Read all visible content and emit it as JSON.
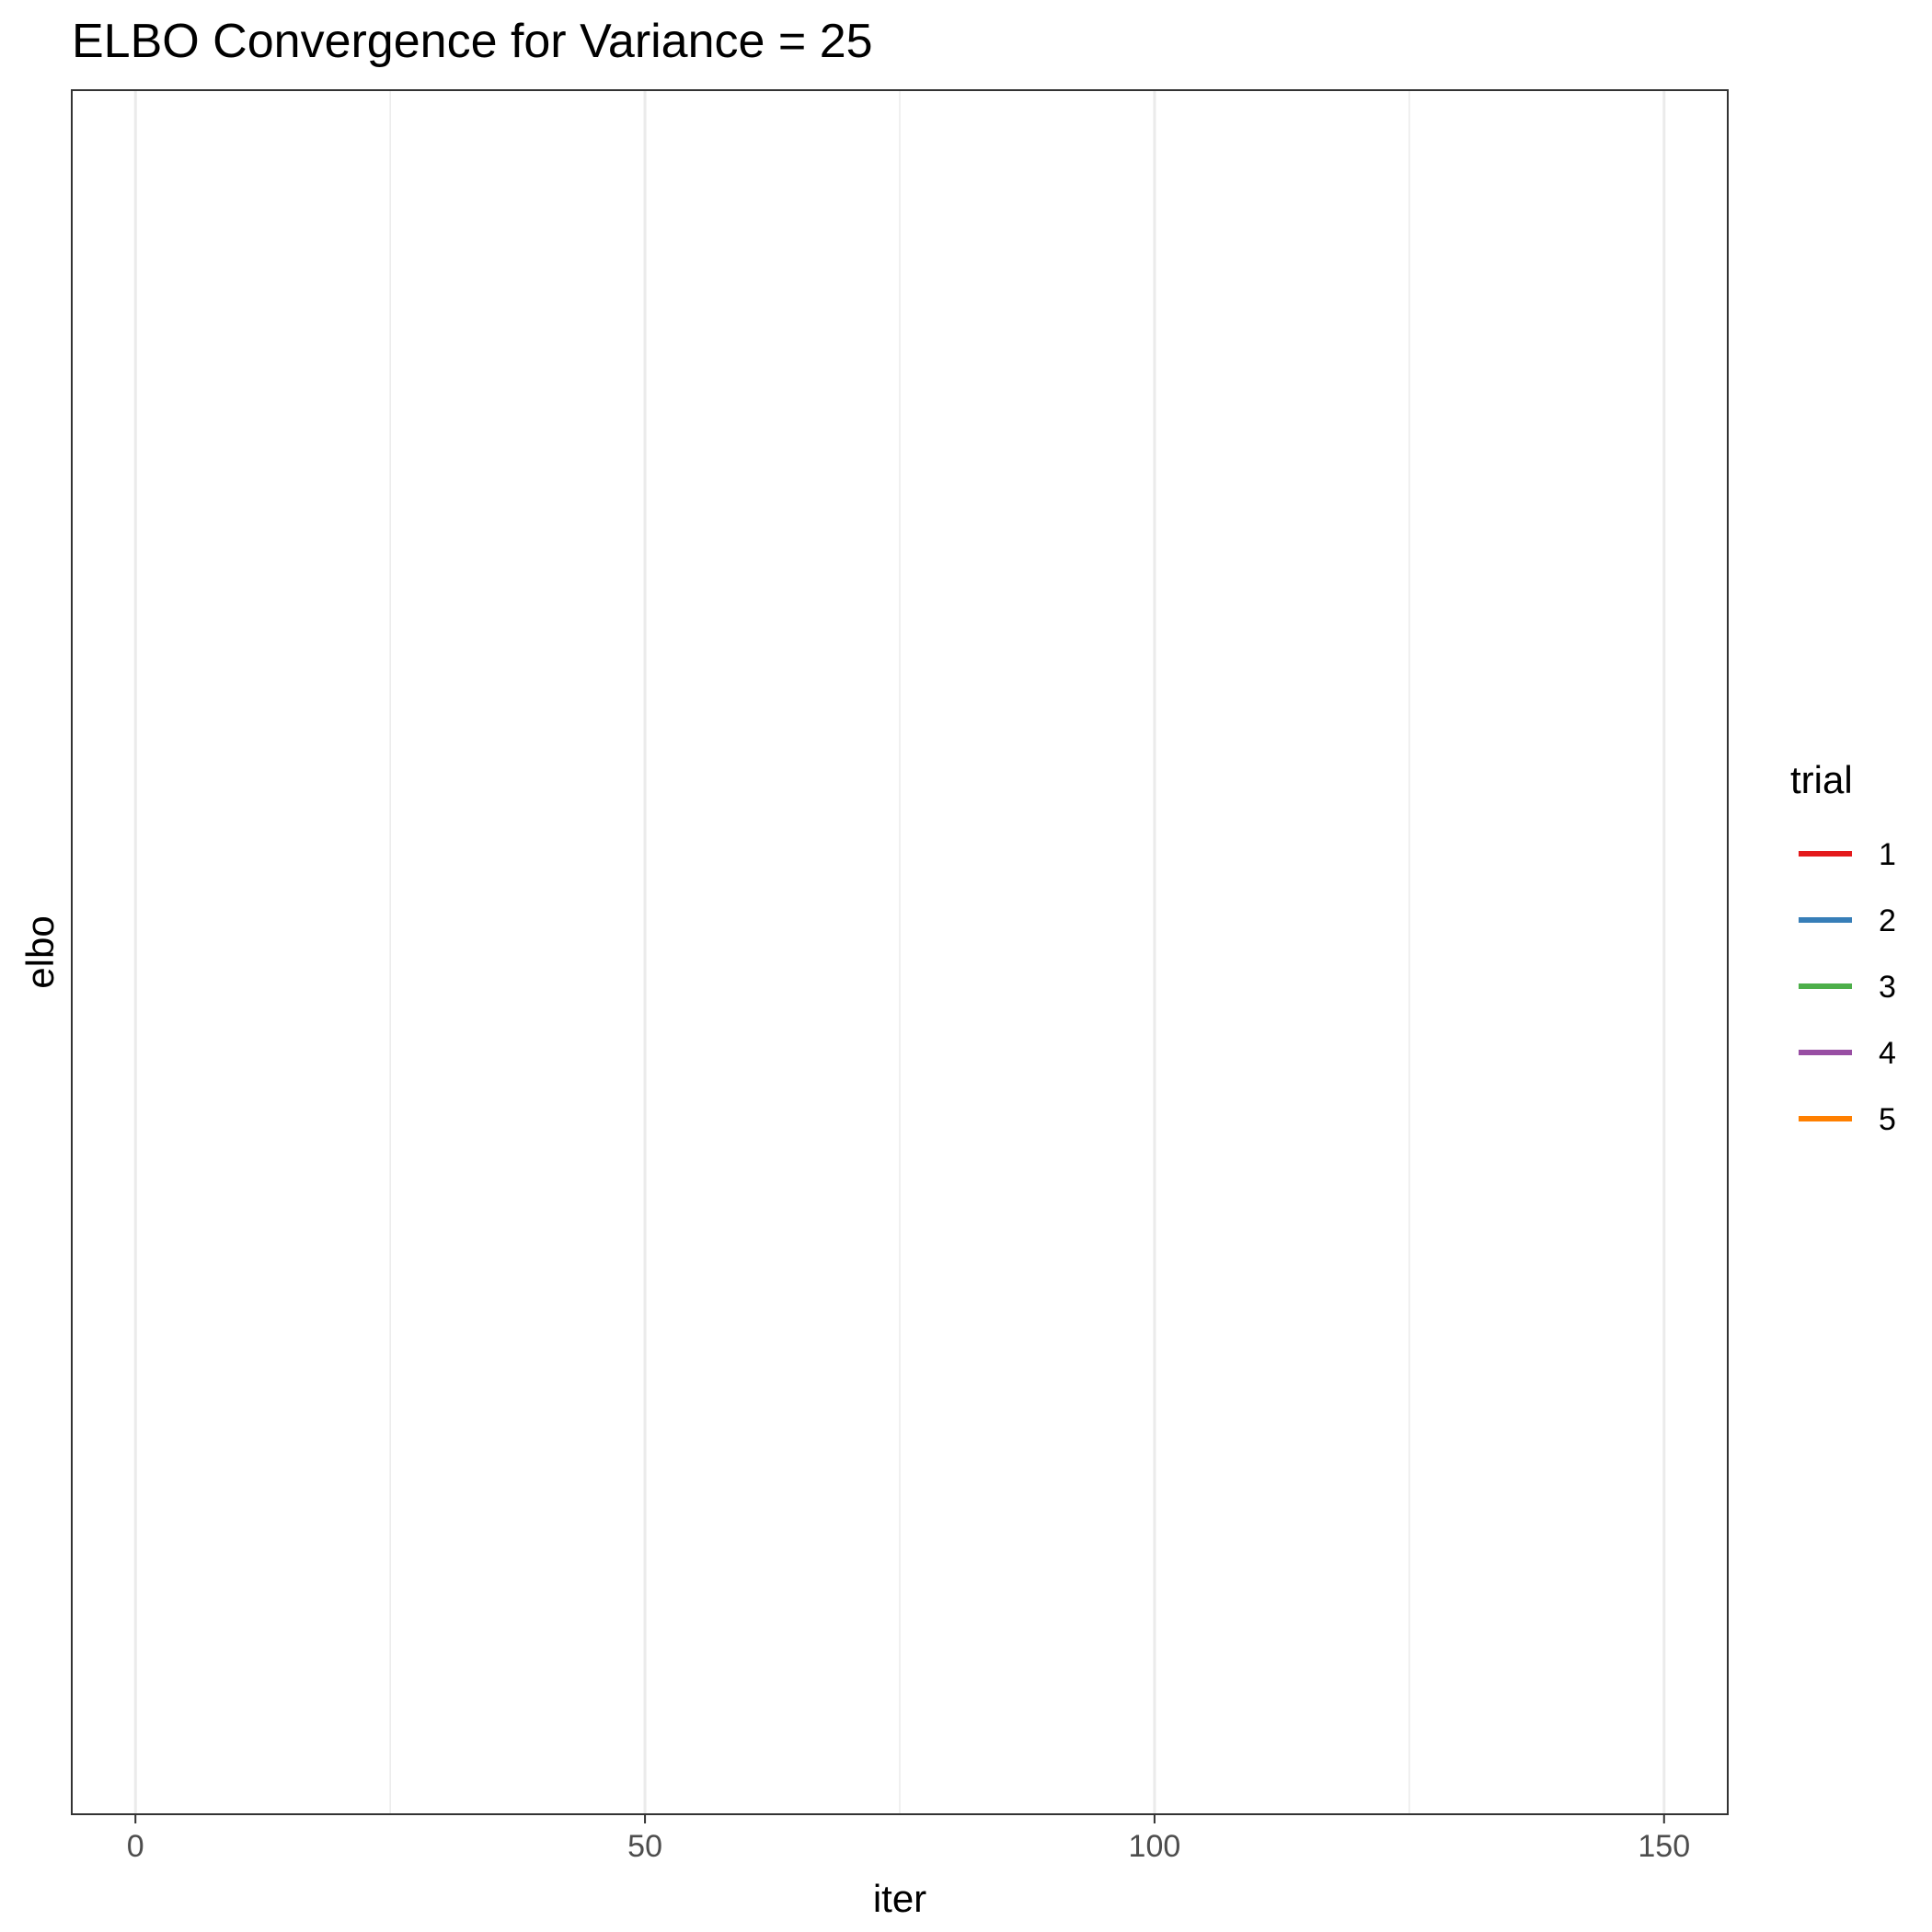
{
  "chart_data": {
    "type": "line",
    "title": "ELBO Convergence for Variance = 25",
    "xlabel": "iter",
    "ylabel": "elbo",
    "xlim": [
      -6.25,
      156.25
    ],
    "x_major_ticks": [
      0,
      50,
      100,
      150
    ],
    "x_minor_ticks": [
      25,
      75,
      125
    ],
    "y_ticks": [],
    "grid": "vertical",
    "legend": {
      "title": "trial",
      "position": "right",
      "entries": [
        {
          "label": "1",
          "color": "#E41A1C"
        },
        {
          "label": "2",
          "color": "#377EB8"
        },
        {
          "label": "3",
          "color": "#4DAF4A"
        },
        {
          "label": "4",
          "color": "#984EA3"
        },
        {
          "label": "5",
          "color": "#FF7F00"
        }
      ]
    },
    "series": [
      {
        "name": "1",
        "color": "#E41A1C",
        "points": []
      },
      {
        "name": "2",
        "color": "#377EB8",
        "points": []
      },
      {
        "name": "3",
        "color": "#4DAF4A",
        "points": []
      },
      {
        "name": "4",
        "color": "#984EA3",
        "points": []
      },
      {
        "name": "5",
        "color": "#FF7F00",
        "points": []
      }
    ]
  }
}
